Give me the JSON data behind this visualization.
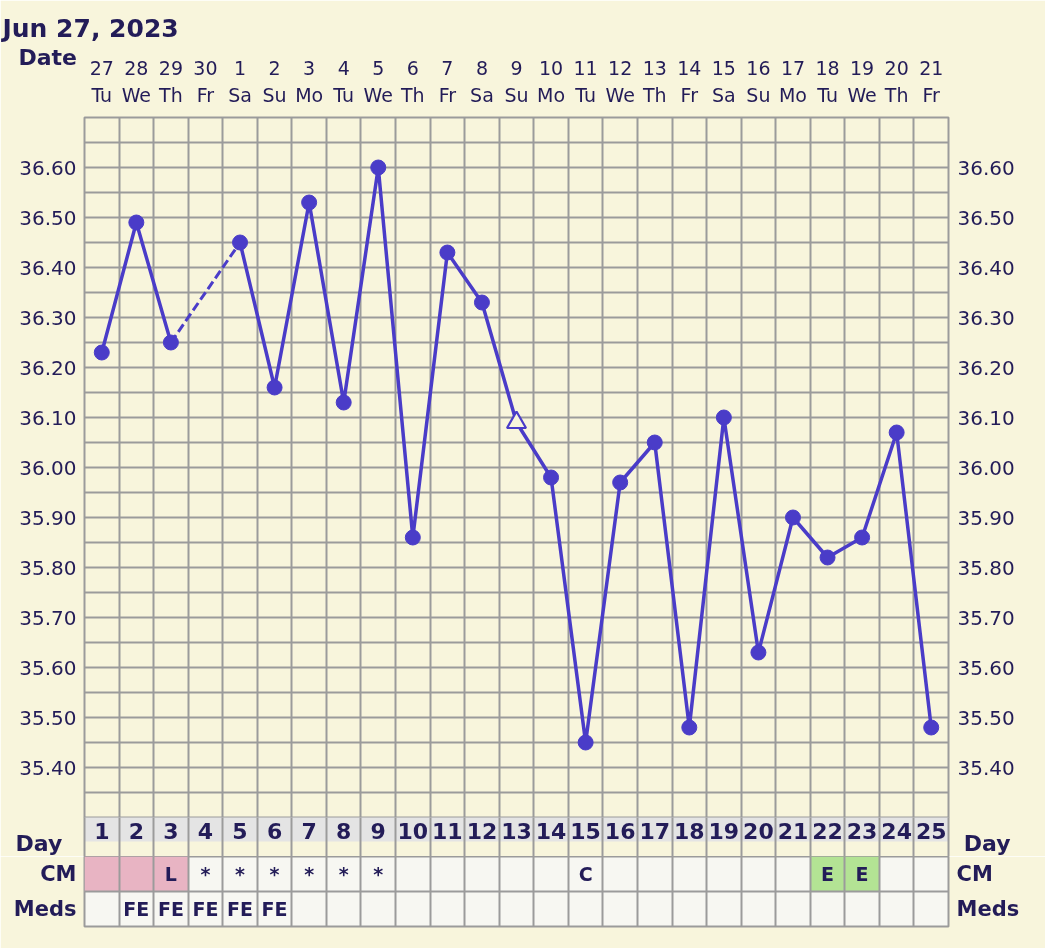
{
  "chart_data": [
    {
      "type": "line",
      "title": "Jun 27, 2023",
      "xlabel": "Date",
      "categories": [
        "27 Tu",
        "28 We",
        "29 Th",
        "30 Fr",
        "1 Sa",
        "2 Su",
        "3 Mo",
        "4 Tu",
        "5 We",
        "6 Th",
        "7 Fr",
        "8 Sa",
        "9 Su",
        "10 Mo",
        "11 Tu",
        "12 We",
        "13 Th",
        "14 Fr",
        "15 Sa",
        "16 Su",
        "17 Mo",
        "18 Tu",
        "19 We",
        "20 Th",
        "21 Fr"
      ],
      "x2label": "Day",
      "x2lim": [
        0.5,
        25.5
      ],
      "x2ticks": [
        1,
        2,
        3,
        4,
        5,
        6,
        7,
        8,
        9,
        10,
        11,
        12,
        13,
        14,
        15,
        16,
        17,
        18,
        19,
        20,
        21,
        22,
        23,
        24,
        25
      ],
      "ylim": [
        35.3,
        36.7
      ],
      "yticks": [
        {
          "value": 35.3,
          "label": null
        },
        {
          "value": 35.35,
          "label": null
        },
        {
          "value": 35.4,
          "label": "35.40"
        },
        {
          "value": 35.45,
          "label": null
        },
        {
          "value": 35.5,
          "label": "35.50"
        },
        {
          "value": 35.55,
          "label": null
        },
        {
          "value": 35.6,
          "label": "35.60"
        },
        {
          "value": 35.65,
          "label": null
        },
        {
          "value": 35.7,
          "label": "35.70"
        },
        {
          "value": 35.75,
          "label": null
        },
        {
          "value": 35.8,
          "label": "35.80"
        },
        {
          "value": 35.85,
          "label": null
        },
        {
          "value": 35.9,
          "label": "35.90"
        },
        {
          "value": 35.95,
          "label": null
        },
        {
          "value": 36.0,
          "label": "36.00"
        },
        {
          "value": 36.05,
          "label": null
        },
        {
          "value": 36.1,
          "label": "36.10"
        },
        {
          "value": 36.15,
          "label": null
        },
        {
          "value": 36.2,
          "label": "36.20"
        },
        {
          "value": 36.25,
          "label": null
        },
        {
          "value": 36.3,
          "label": "36.30"
        },
        {
          "value": 36.35,
          "label": null
        },
        {
          "value": 36.4,
          "label": "36.40"
        },
        {
          "value": 36.45,
          "label": null
        },
        {
          "value": 36.5,
          "label": "36.50"
        },
        {
          "value": 36.55,
          "label": null
        },
        {
          "value": 36.6,
          "label": "36.60"
        },
        {
          "value": 36.65,
          "label": null
        },
        {
          "value": 36.7,
          "label": null
        }
      ],
      "y2lim": [
        35.3,
        36.7
      ],
      "y2ticks": [
        {
          "value": 35.4,
          "label": "35.40"
        },
        {
          "value": 35.5,
          "label": "35.50"
        },
        {
          "value": 35.6,
          "label": "35.60"
        },
        {
          "value": 35.7,
          "label": "35.70"
        },
        {
          "value": 35.8,
          "label": "35.80"
        },
        {
          "value": 35.9,
          "label": "35.90"
        },
        {
          "value": 36.0,
          "label": "36.00"
        },
        {
          "value": 36.1,
          "label": "36.10"
        },
        {
          "value": 36.2,
          "label": "36.20"
        },
        {
          "value": 36.3,
          "label": "36.30"
        },
        {
          "value": 36.4,
          "label": "36.40"
        },
        {
          "value": 36.5,
          "label": "36.50"
        },
        {
          "value": 36.6,
          "label": "36.60"
        }
      ],
      "grid": true,
      "series": [
        {
          "type": "line",
          "color": "#4a3cc8",
          "marker": "none",
          "values": [
            36.23,
            36.49,
            36.25,
            null,
            36.45,
            36.16,
            36.53,
            36.13,
            36.6,
            35.86,
            36.43,
            36.33,
            36.09,
            35.98,
            35.45,
            35.97,
            36.05,
            35.48,
            36.1,
            35.63,
            35.9,
            35.82,
            35.86,
            36.07,
            35.48
          ]
        },
        {
          "type": "line",
          "color": "#4b3dc9",
          "marker": "none",
          "line_style": "dashed",
          "x": [
            "29 Th",
            "1 Sa"
          ],
          "values": [
            36.25,
            36.45
          ]
        },
        {
          "type": "scatter",
          "color": "#4a3cc8",
          "marker": "circle",
          "values": [
            36.23,
            36.49,
            36.25,
            null,
            36.45,
            36.16,
            36.53,
            36.13,
            36.6,
            35.86,
            36.43,
            36.33,
            null,
            35.98,
            35.45,
            35.97,
            36.05,
            35.48,
            36.1,
            35.63,
            35.9,
            35.82,
            35.86,
            36.07,
            35.48
          ]
        },
        {
          "type": "scatter",
          "color": "#4a3cc8",
          "marker": "triangle",
          "x": [
            "9 Su"
          ],
          "values": [
            36.09
          ]
        }
      ]
    },
    {
      "type": "other",
      "categories": [
        null,
        null,
        null,
        null,
        null,
        null,
        null,
        null,
        null,
        null,
        null,
        null,
        null,
        null,
        null,
        null,
        null,
        null,
        null,
        null,
        null,
        null,
        null,
        null,
        null
      ],
      "y_categories": [
        "CM",
        "Meds"
      ],
      "y2_categories": [
        "CM",
        "Meds"
      ],
      "cell_labels": [
        [
          null,
          null,
          "L",
          "*",
          "*",
          "*",
          "*",
          "*",
          "*",
          null,
          null,
          null,
          null,
          null,
          "C",
          null,
          null,
          null,
          null,
          null,
          null,
          "E",
          "E",
          null,
          null
        ],
        [
          null,
          "FE",
          "FE",
          "FE",
          "FE",
          "FE",
          null,
          null,
          null,
          null,
          null,
          null,
          null,
          null,
          null,
          null,
          null,
          null,
          null,
          null,
          null,
          null,
          null,
          null,
          null
        ]
      ],
      "colors": [
        [
          "#e8b4c3",
          "#e8b4c3",
          "#e8b4c3",
          null,
          null,
          null,
          null,
          null,
          null,
          null,
          null,
          null,
          null,
          null,
          null,
          null,
          null,
          null,
          null,
          null,
          null,
          "#b3e394",
          "#b3e394",
          null,
          null
        ],
        [
          null,
          null,
          null,
          null,
          null,
          null,
          null,
          null,
          null,
          null,
          null,
          null,
          null,
          null,
          null,
          null,
          null,
          null,
          null,
          null,
          null,
          null,
          null,
          null,
          null
        ]
      ]
    }
  ]
}
